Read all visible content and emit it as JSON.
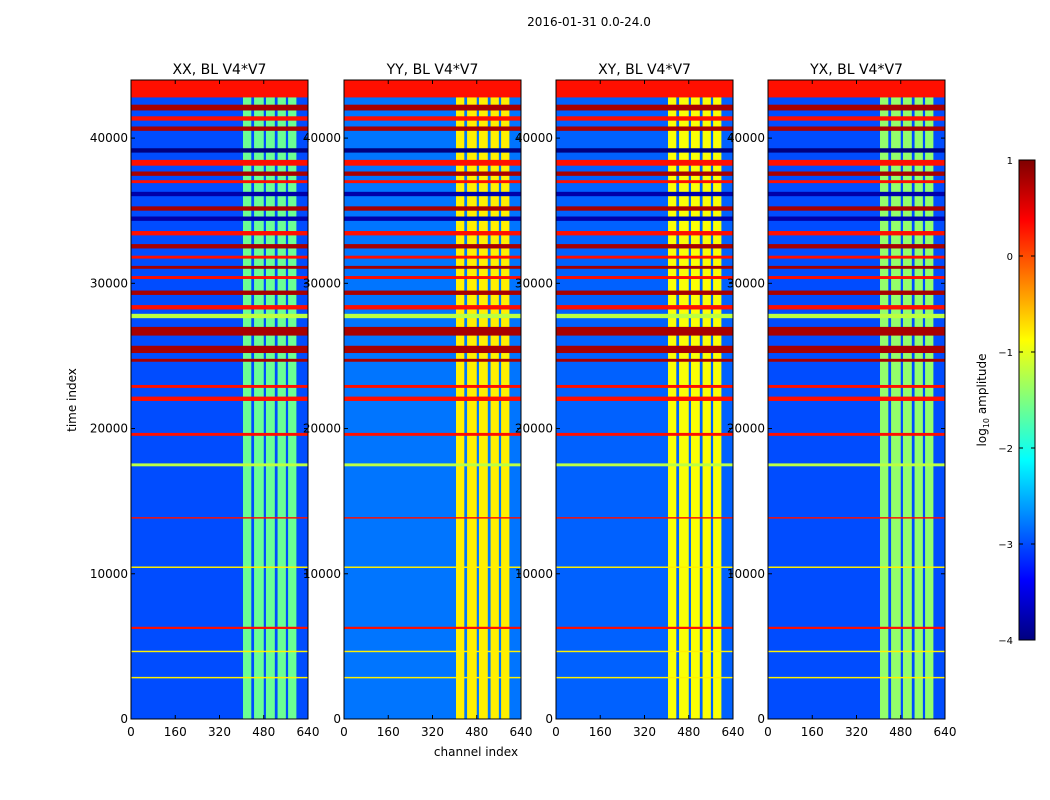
{
  "figure": {
    "suptitle": "2016-01-31 0.0-24.0",
    "xlabel": "channel index",
    "ylabel": "time index"
  },
  "colorbar": {
    "label_prefix": "log",
    "label_sub": "10",
    "label_suffix": " amplitude",
    "range": [
      -4,
      1
    ],
    "tick_values": [
      1,
      0,
      -1,
      -2,
      -3,
      -4
    ],
    "tick_labels": [
      "1",
      "0",
      "−1",
      "−2",
      "−3",
      "−4"
    ],
    "colormap": "jet",
    "colormap_stops": [
      "#00007f",
      "#0000ff",
      "#007fff",
      "#00ffff",
      "#7fff7f",
      "#ffff00",
      "#ff7f00",
      "#ff0000",
      "#7f0000"
    ]
  },
  "chart_data": [
    {
      "type": "heatmap",
      "title": "XX, BL V4*V7",
      "xlim": [
        0,
        640
      ],
      "ylim": [
        0,
        44000
      ],
      "xticks": [
        0,
        160,
        320,
        480,
        640
      ],
      "xtick_labels": [
        "0",
        "160",
        "320",
        "480",
        "640"
      ],
      "yticks": [
        0,
        10000,
        20000,
        30000,
        40000
      ],
      "ytick_labels": [
        "0",
        "10000",
        "20000",
        "30000",
        "40000"
      ],
      "background_level": -3.0,
      "band_level": -1.6
    },
    {
      "type": "heatmap",
      "title": "YY, BL V4*V7",
      "xlim": [
        0,
        640
      ],
      "ylim": [
        0,
        44000
      ],
      "xticks": [
        0,
        160,
        320,
        480,
        640
      ],
      "xtick_labels": [
        "0",
        "160",
        "320",
        "480",
        "640"
      ],
      "yticks": [
        0,
        10000,
        20000,
        30000,
        40000
      ],
      "ytick_labels": [
        "0",
        "10000",
        "20000",
        "30000",
        "40000"
      ],
      "background_level": -2.8,
      "band_level": -0.8
    },
    {
      "type": "heatmap",
      "title": "XY, BL V4*V7",
      "xlim": [
        0,
        640
      ],
      "ylim": [
        0,
        44000
      ],
      "xticks": [
        0,
        160,
        320,
        480,
        640
      ],
      "xtick_labels": [
        "0",
        "160",
        "320",
        "480",
        "640"
      ],
      "yticks": [
        0,
        10000,
        20000,
        30000,
        40000
      ],
      "ytick_labels": [
        "0",
        "10000",
        "20000",
        "30000",
        "40000"
      ],
      "background_level": -2.9,
      "band_level": -0.9
    },
    {
      "type": "heatmap",
      "title": "YX, BL V4*V7",
      "xlim": [
        0,
        640
      ],
      "ylim": [
        0,
        44000
      ],
      "xticks": [
        0,
        160,
        320,
        480,
        640
      ],
      "xtick_labels": [
        "0",
        "160",
        "320",
        "480",
        "640"
      ],
      "yticks": [
        0,
        10000,
        20000,
        30000,
        40000
      ],
      "ytick_labels": [
        "0",
        "10000",
        "20000",
        "30000",
        "40000"
      ],
      "background_level": -3.0,
      "band_level": -1.4
    }
  ],
  "rfi_channel_bands": [
    {
      "from": 405,
      "to": 435
    },
    {
      "from": 445,
      "to": 480
    },
    {
      "from": 488,
      "to": 520
    },
    {
      "from": 530,
      "to": 560
    },
    {
      "from": 568,
      "to": 598
    }
  ],
  "flagged_time_ranges": [
    {
      "from": 42800,
      "to": 44000,
      "level": 0.3
    },
    {
      "from": 41900,
      "to": 42300,
      "level": 0.8
    },
    {
      "from": 41200,
      "to": 41500,
      "level": 0.3
    },
    {
      "from": 40500,
      "to": 40800,
      "level": 0.8
    },
    {
      "from": 39000,
      "to": 39300,
      "level": -4.0
    },
    {
      "from": 38100,
      "to": 38500,
      "level": 0.3
    },
    {
      "from": 37400,
      "to": 37700,
      "level": 0.8
    },
    {
      "from": 36900,
      "to": 37100,
      "level": 0.3
    },
    {
      "from": 36000,
      "to": 36300,
      "level": -3.8
    },
    {
      "from": 35000,
      "to": 35300,
      "level": 0.8
    },
    {
      "from": 34300,
      "to": 34600,
      "level": -3.8
    },
    {
      "from": 33300,
      "to": 33600,
      "level": 0.3
    },
    {
      "from": 32400,
      "to": 32700,
      "level": 0.8
    },
    {
      "from": 31700,
      "to": 31900,
      "level": 0.3
    },
    {
      "from": 31000,
      "to": 31200,
      "level": 0.8
    },
    {
      "from": 30300,
      "to": 30500,
      "level": 0.3
    },
    {
      "from": 29200,
      "to": 29500,
      "level": 0.8
    },
    {
      "from": 28200,
      "to": 28500,
      "level": 0.3
    },
    {
      "from": 27600,
      "to": 27900,
      "level": -1.2
    },
    {
      "from": 26400,
      "to": 27000,
      "level": 0.8
    },
    {
      "from": 25200,
      "to": 25700,
      "level": 0.8
    },
    {
      "from": 24600,
      "to": 24800,
      "level": 0.8
    },
    {
      "from": 22800,
      "to": 23000,
      "level": 0.3
    },
    {
      "from": 21900,
      "to": 22200,
      "level": 0.3
    },
    {
      "from": 19500,
      "to": 19700,
      "level": 0.3
    },
    {
      "from": 17400,
      "to": 17600,
      "level": -1.2
    },
    {
      "from": 13800,
      "to": 13900,
      "level": 0.3
    },
    {
      "from": 10400,
      "to": 10500,
      "level": -0.8
    },
    {
      "from": 6200,
      "to": 6350,
      "level": 0.3
    },
    {
      "from": 4600,
      "to": 4700,
      "level": -0.8
    },
    {
      "from": 2800,
      "to": 2900,
      "level": -0.8
    }
  ]
}
